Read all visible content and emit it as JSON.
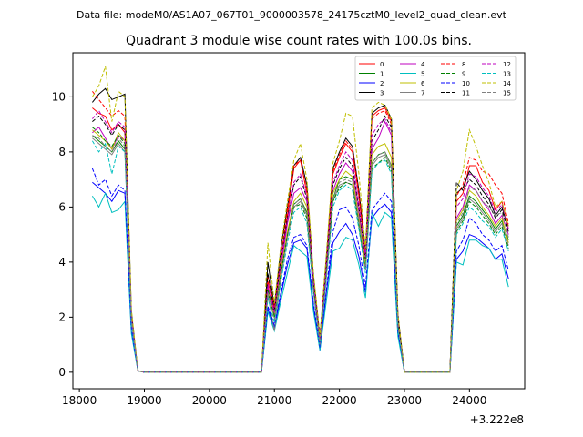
{
  "header": {
    "data_file": "Data file: modeM0/AS1A07_067T01_9000003578_24175cztM0_level2_quad_clean.evt"
  },
  "chart_data": {
    "type": "line",
    "title": "Quadrant 3 module wise count rates with 100.0s bins.",
    "xlabel": "",
    "ylabel": "",
    "x_offset_label": "+3.222e8",
    "xlim": [
      17900,
      24850
    ],
    "ylim": [
      -0.6,
      11.6
    ],
    "xticks": [
      18000,
      19000,
      20000,
      21000,
      22000,
      23000,
      24000
    ],
    "yticks": [
      0,
      2,
      4,
      6,
      8,
      10
    ],
    "grid": false,
    "legend_placement": "top-right",
    "legend_columns": 4,
    "x": [
      18200,
      18300,
      18400,
      18500,
      18600,
      18700,
      18800,
      18900,
      19000,
      20700,
      20800,
      20900,
      21000,
      21100,
      21200,
      21300,
      21400,
      21500,
      21600,
      21700,
      21800,
      21900,
      22000,
      22100,
      22200,
      22300,
      22400,
      22500,
      22600,
      22700,
      22800,
      22900,
      23000,
      23100,
      23700,
      23800,
      23900,
      24000,
      24100,
      24200,
      24300,
      24400,
      24500,
      24600
    ],
    "series": [
      {
        "name": "0",
        "color": "#ff0000",
        "dash": false,
        "values": [
          9.6,
          9.4,
          9.3,
          8.8,
          9.0,
          8.7,
          2.0,
          0.05,
          0,
          0,
          0,
          3.3,
          2.3,
          4.0,
          5.7,
          7.4,
          7.7,
          6.5,
          3.4,
          1.2,
          4.0,
          7.2,
          7.8,
          8.3,
          8.0,
          6.4,
          4.3,
          9.3,
          9.5,
          9.6,
          9.1,
          2.0,
          0,
          0,
          0,
          6.2,
          6.5,
          7.5,
          7.5,
          6.9,
          6.6,
          5.9,
          6.2,
          5.3
        ]
      },
      {
        "name": "1",
        "color": "#008000",
        "dash": false,
        "values": [
          8.6,
          8.4,
          8.2,
          8.0,
          8.4,
          8.1,
          1.9,
          0.05,
          0,
          0,
          0,
          2.9,
          2.0,
          3.5,
          5.0,
          6.1,
          6.3,
          5.8,
          3.1,
          1.0,
          3.6,
          6.3,
          7.0,
          7.1,
          7.0,
          5.5,
          3.8,
          7.6,
          7.9,
          8.0,
          7.5,
          1.8,
          0,
          0,
          0,
          5.3,
          5.7,
          6.4,
          6.2,
          5.9,
          5.6,
          5.2,
          5.5,
          4.8
        ]
      },
      {
        "name": "2",
        "color": "#0000ff",
        "dash": false,
        "values": [
          6.9,
          6.7,
          6.5,
          6.2,
          6.6,
          6.5,
          1.5,
          0.05,
          0,
          0,
          0,
          2.3,
          1.6,
          2.8,
          3.9,
          4.7,
          4.8,
          4.5,
          2.4,
          0.8,
          2.9,
          4.7,
          5.1,
          5.4,
          5.0,
          4.2,
          2.9,
          5.6,
          5.9,
          6.1,
          5.8,
          1.4,
          0,
          0,
          0,
          4.1,
          4.4,
          5.0,
          4.9,
          4.7,
          4.5,
          4.1,
          4.3,
          3.4
        ]
      },
      {
        "name": "3",
        "color": "#000000",
        "dash": false,
        "values": [
          9.8,
          10.1,
          10.3,
          9.9,
          10.0,
          10.1,
          2.2,
          0.05,
          0,
          0,
          0,
          4.0,
          2.4,
          4.5,
          6.0,
          7.5,
          7.8,
          6.8,
          3.5,
          1.3,
          4.2,
          7.4,
          8.0,
          8.5,
          8.2,
          6.6,
          4.4,
          9.4,
          9.6,
          9.7,
          9.2,
          2.1,
          0,
          0,
          0,
          6.5,
          6.7,
          7.3,
          7.0,
          6.6,
          6.3,
          5.7,
          6.0,
          5.2
        ]
      },
      {
        "name": "4",
        "color": "#bf00bf",
        "dash": false,
        "values": [
          8.7,
          8.9,
          8.5,
          8.1,
          8.6,
          8.4,
          2.0,
          0.05,
          0,
          0,
          0,
          3.1,
          2.1,
          3.8,
          5.4,
          6.5,
          6.7,
          6.2,
          3.2,
          1.1,
          3.8,
          6.6,
          7.2,
          7.6,
          7.3,
          5.8,
          4.0,
          8.1,
          8.5,
          9.1,
          8.6,
          1.9,
          0,
          0,
          0,
          5.6,
          6.0,
          6.8,
          6.6,
          6.2,
          5.9,
          5.4,
          5.7,
          5.0
        ]
      },
      {
        "name": "5",
        "color": "#00bfbf",
        "dash": false,
        "values": [
          6.4,
          6.0,
          6.5,
          5.8,
          5.9,
          6.2,
          1.4,
          0.05,
          0,
          0,
          0,
          2.2,
          1.5,
          2.6,
          3.6,
          4.6,
          4.4,
          4.2,
          2.2,
          0.8,
          2.6,
          4.4,
          4.5,
          4.9,
          4.8,
          3.9,
          2.7,
          5.8,
          5.3,
          5.8,
          5.6,
          1.3,
          0,
          0,
          0,
          4.0,
          3.9,
          4.8,
          4.8,
          4.6,
          4.5,
          4.1,
          4.1,
          3.1
        ]
      },
      {
        "name": "6",
        "color": "#bfbf00",
        "dash": false,
        "values": [
          8.8,
          8.6,
          8.4,
          8.1,
          8.7,
          8.4,
          2.0,
          0.05,
          0,
          0,
          0,
          3.0,
          2.0,
          3.7,
          5.1,
          6.2,
          6.5,
          6.0,
          3.1,
          1.0,
          3.7,
          6.5,
          7.0,
          7.3,
          7.1,
          5.6,
          3.9,
          7.9,
          8.2,
          8.3,
          7.8,
          1.8,
          0,
          0,
          0,
          5.5,
          5.9,
          6.6,
          6.4,
          6.0,
          5.7,
          5.3,
          5.6,
          4.7
        ]
      },
      {
        "name": "7",
        "color": "#808080",
        "dash": false,
        "values": [
          8.5,
          8.3,
          8.1,
          7.9,
          8.3,
          8.0,
          1.9,
          0.05,
          0,
          0,
          0,
          2.8,
          1.5,
          3.4,
          4.9,
          6.0,
          6.2,
          5.7,
          3.0,
          1.0,
          3.5,
          6.2,
          6.8,
          6.9,
          6.8,
          5.4,
          3.7,
          7.5,
          7.8,
          7.9,
          7.4,
          1.7,
          0,
          0,
          0,
          5.2,
          5.6,
          6.3,
          6.1,
          5.8,
          5.5,
          5.1,
          5.4,
          4.6
        ]
      },
      {
        "name": "8",
        "color": "#ff0000",
        "dash": true,
        "values": [
          10.2,
          9.9,
          9.6,
          9.3,
          9.5,
          9.3,
          2.1,
          0.05,
          0,
          0,
          0,
          3.5,
          2.4,
          4.2,
          5.9,
          7.5,
          7.7,
          6.6,
          3.4,
          1.2,
          4.1,
          7.3,
          7.9,
          8.4,
          8.1,
          6.5,
          4.3,
          9.2,
          9.4,
          9.5,
          9.0,
          2.0,
          0,
          0,
          0,
          6.4,
          6.8,
          7.8,
          7.7,
          7.3,
          7.2,
          6.8,
          6.5,
          5.4
        ]
      },
      {
        "name": "9",
        "color": "#008000",
        "dash": true,
        "values": [
          8.9,
          8.7,
          8.4,
          8.2,
          8.6,
          8.3,
          1.9,
          0.05,
          0,
          0,
          0,
          3.0,
          2.0,
          3.6,
          5.0,
          6.0,
          6.1,
          5.6,
          3.0,
          1.0,
          3.6,
          6.2,
          6.7,
          6.9,
          6.8,
          5.3,
          3.7,
          7.4,
          7.6,
          7.8,
          7.3,
          1.7,
          0,
          0,
          0,
          5.1,
          5.5,
          6.2,
          6.0,
          5.7,
          5.4,
          5.0,
          5.3,
          4.5
        ]
      },
      {
        "name": "10",
        "color": "#0000ff",
        "dash": true,
        "values": [
          7.4,
          6.8,
          7.0,
          6.4,
          6.8,
          6.6,
          1.6,
          0.05,
          0,
          0,
          0,
          2.4,
          1.7,
          2.9,
          4.1,
          4.9,
          5.0,
          4.6,
          2.5,
          0.9,
          3.0,
          5.1,
          5.9,
          6.0,
          5.6,
          4.6,
          3.1,
          5.9,
          6.2,
          6.5,
          6.2,
          1.5,
          0,
          0,
          0,
          4.4,
          4.8,
          5.6,
          5.4,
          5.0,
          4.8,
          4.4,
          4.6,
          3.7
        ]
      },
      {
        "name": "11",
        "color": "#000000",
        "dash": true,
        "values": [
          9.1,
          9.3,
          9.0,
          8.6,
          9.0,
          8.8,
          2.0,
          0.05,
          0,
          0,
          0,
          3.6,
          2.2,
          4.1,
          5.6,
          6.8,
          7.1,
          6.3,
          3.3,
          1.1,
          3.9,
          6.8,
          7.4,
          7.8,
          7.5,
          6.0,
          4.1,
          8.4,
          8.8,
          9.3,
          8.9,
          1.9,
          0,
          0,
          0,
          6.9,
          6.6,
          7.0,
          6.8,
          6.4,
          6.1,
          5.6,
          5.9,
          5.1
        ]
      },
      {
        "name": "12",
        "color": "#bf00bf",
        "dash": true,
        "values": [
          9.2,
          9.5,
          9.1,
          8.7,
          9.1,
          8.9,
          2.0,
          0.05,
          0,
          0,
          0,
          3.2,
          2.2,
          4.0,
          5.5,
          6.9,
          7.2,
          6.4,
          3.3,
          1.1,
          3.9,
          6.9,
          7.5,
          8.0,
          7.7,
          6.1,
          4.2,
          8.6,
          9.0,
          9.2,
          8.7,
          2.0,
          0,
          0,
          0,
          6.0,
          6.3,
          7.2,
          7.1,
          6.7,
          6.4,
          5.8,
          6.1,
          5.2
        ]
      },
      {
        "name": "13",
        "color": "#00bfbf",
        "dash": true,
        "values": [
          8.4,
          8.0,
          8.3,
          7.2,
          8.2,
          8.0,
          1.8,
          0.05,
          0,
          0,
          0,
          2.7,
          1.8,
          3.3,
          4.7,
          5.8,
          6.0,
          5.4,
          2.9,
          1.0,
          3.4,
          6.0,
          6.6,
          6.8,
          6.6,
          5.2,
          3.6,
          7.3,
          7.6,
          7.7,
          7.2,
          1.6,
          0,
          0,
          0,
          5.0,
          5.4,
          6.0,
          5.8,
          5.5,
          5.3,
          4.9,
          5.2,
          4.4
        ]
      },
      {
        "name": "14",
        "color": "#bfbf00",
        "dash": true,
        "values": [
          10.0,
          10.4,
          11.1,
          9.1,
          10.2,
          10.0,
          2.3,
          0.05,
          0,
          0,
          0,
          4.7,
          2.5,
          4.6,
          6.2,
          7.7,
          8.3,
          7.0,
          3.6,
          1.3,
          4.3,
          7.6,
          8.4,
          9.4,
          9.3,
          7.2,
          4.5,
          9.6,
          9.8,
          9.7,
          9.2,
          2.1,
          0,
          0,
          0,
          6.6,
          7.3,
          8.8,
          8.2,
          7.5,
          6.9,
          6.0,
          6.2,
          5.3
        ]
      },
      {
        "name": "15",
        "color": "#808080",
        "dash": true,
        "values": [
          8.6,
          8.5,
          8.2,
          8.0,
          8.5,
          8.2,
          1.9,
          0.05,
          0,
          0,
          0,
          2.9,
          1.9,
          3.5,
          4.9,
          6.1,
          6.3,
          5.7,
          3.0,
          1.0,
          3.5,
          6.3,
          6.9,
          7.0,
          6.9,
          5.5,
          3.7,
          7.6,
          7.9,
          8.0,
          7.5,
          1.7,
          0,
          0,
          0,
          5.4,
          5.8,
          6.7,
          6.6,
          6.2,
          6.0,
          5.7,
          5.8,
          4.9
        ]
      }
    ]
  }
}
